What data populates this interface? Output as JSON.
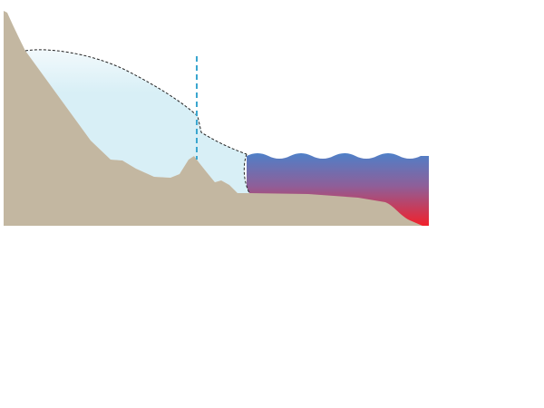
{
  "diagram": {
    "type": "glacier-fjord-cross-section",
    "labels": [],
    "colors": {
      "background": "#ffffff",
      "bedrock": "#c3b7a1",
      "ice_top": "#f2f9fc",
      "ice_body": "#d8eff6",
      "ice_outline": "#222222",
      "grounding_line_marker": "#3aa6cf",
      "ocean_surface": "#4f80c8",
      "ocean_mid": "#8e5f99",
      "ocean_bottom": "#f2212b"
    },
    "elements": {
      "bedrock": "bedrock-terrain",
      "ice": "glacier-ice-sheet",
      "ocean": "ocean-water-column",
      "marker": "grounding-line-marker",
      "calving_front": "calving-front-outline"
    }
  }
}
